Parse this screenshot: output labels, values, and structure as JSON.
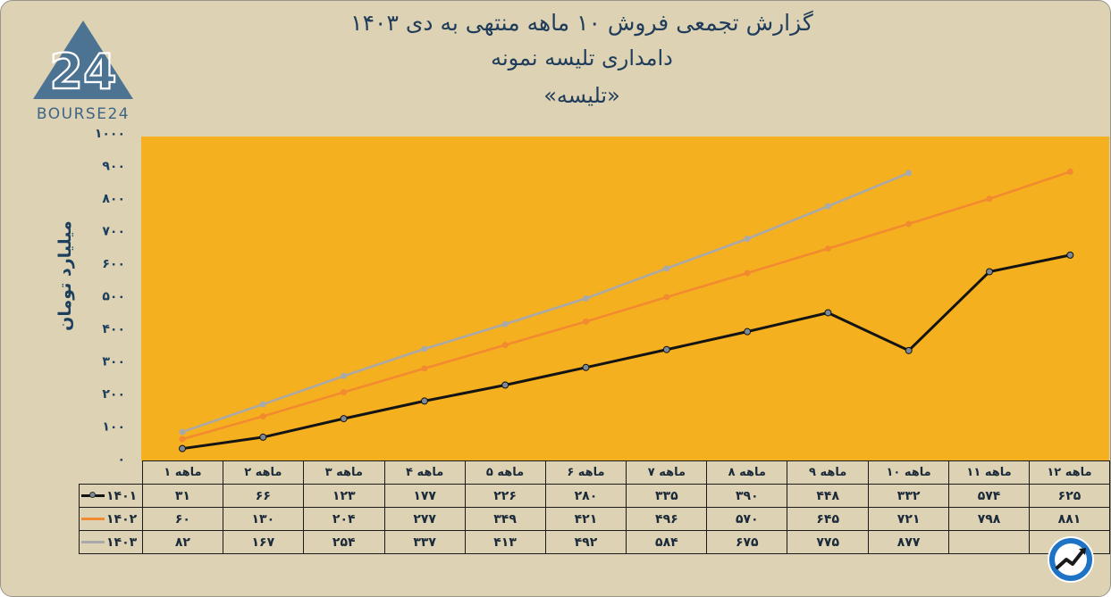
{
  "header": {
    "title_line1": "گزارش تجمعی فروش ۱۰ ماهه منتهی به دی ۱۴۰۳",
    "title_line2": "دامداری تلیسه نمونه",
    "title_line3": "«تلیسه»"
  },
  "logo": {
    "text": "BOURSE24",
    "mark": "24"
  },
  "badge": {
    "icon": "trend-up-icon"
  },
  "colors": {
    "background": "#ddd2b3",
    "plot_area": "#f5b01f",
    "accent": "#1c3f5e",
    "s1401": "#141414",
    "s1402": "#f28a30",
    "s1403": "#a9a9a9"
  },
  "chart_data": {
    "type": "line",
    "ylabel": "میلیارد تومان",
    "ylim": [
      0,
      1000
    ],
    "y_ticks": [
      "۰",
      "۱۰۰",
      "۲۰۰",
      "۳۰۰",
      "۴۰۰",
      "۵۰۰",
      "۶۰۰",
      "۷۰۰",
      "۸۰۰",
      "۹۰۰",
      "۱۰۰۰"
    ],
    "grid": false,
    "categories": [
      "۱ ماهه",
      "۲ ماهه",
      "۳ ماهه",
      "۴ ماهه",
      "۵ ماهه",
      "۶ ماهه",
      "۷ ماهه",
      "۸ ماهه",
      "۹ ماهه",
      "۱۰ ماهه",
      "۱۱ ماهه",
      "۱۲ ماهه"
    ],
    "series": [
      {
        "name": "۱۴۰۱",
        "color": "#141414",
        "values": [
          31,
          66,
          123,
          177,
          226,
          280,
          335,
          390,
          448,
          332,
          574,
          625
        ],
        "labels": [
          "۳۱",
          "۶۶",
          "۱۲۳",
          "۱۷۷",
          "۲۲۶",
          "۲۸۰",
          "۳۳۵",
          "۳۹۰",
          "۴۴۸",
          "۳۳۲",
          "۵۷۴",
          "۶۲۵"
        ]
      },
      {
        "name": "۱۴۰۲",
        "color": "#f28a30",
        "values": [
          60,
          130,
          204,
          277,
          349,
          421,
          496,
          570,
          645,
          721,
          798,
          881
        ],
        "labels": [
          "۶۰",
          "۱۳۰",
          "۲۰۴",
          "۲۷۷",
          "۳۴۹",
          "۴۲۱",
          "۴۹۶",
          "۵۷۰",
          "۶۴۵",
          "۷۲۱",
          "۷۹۸",
          "۸۸۱"
        ]
      },
      {
        "name": "۱۴۰۳",
        "color": "#a9a9a9",
        "values": [
          82,
          167,
          254,
          337,
          413,
          492,
          584,
          675,
          775,
          877,
          null,
          null
        ],
        "labels": [
          "۸۲",
          "۱۶۷",
          "۲۵۴",
          "۳۳۷",
          "۴۱۳",
          "۴۹۲",
          "۵۸۴",
          "۶۷۵",
          "۷۷۵",
          "۸۷۷",
          "",
          ""
        ]
      }
    ]
  }
}
